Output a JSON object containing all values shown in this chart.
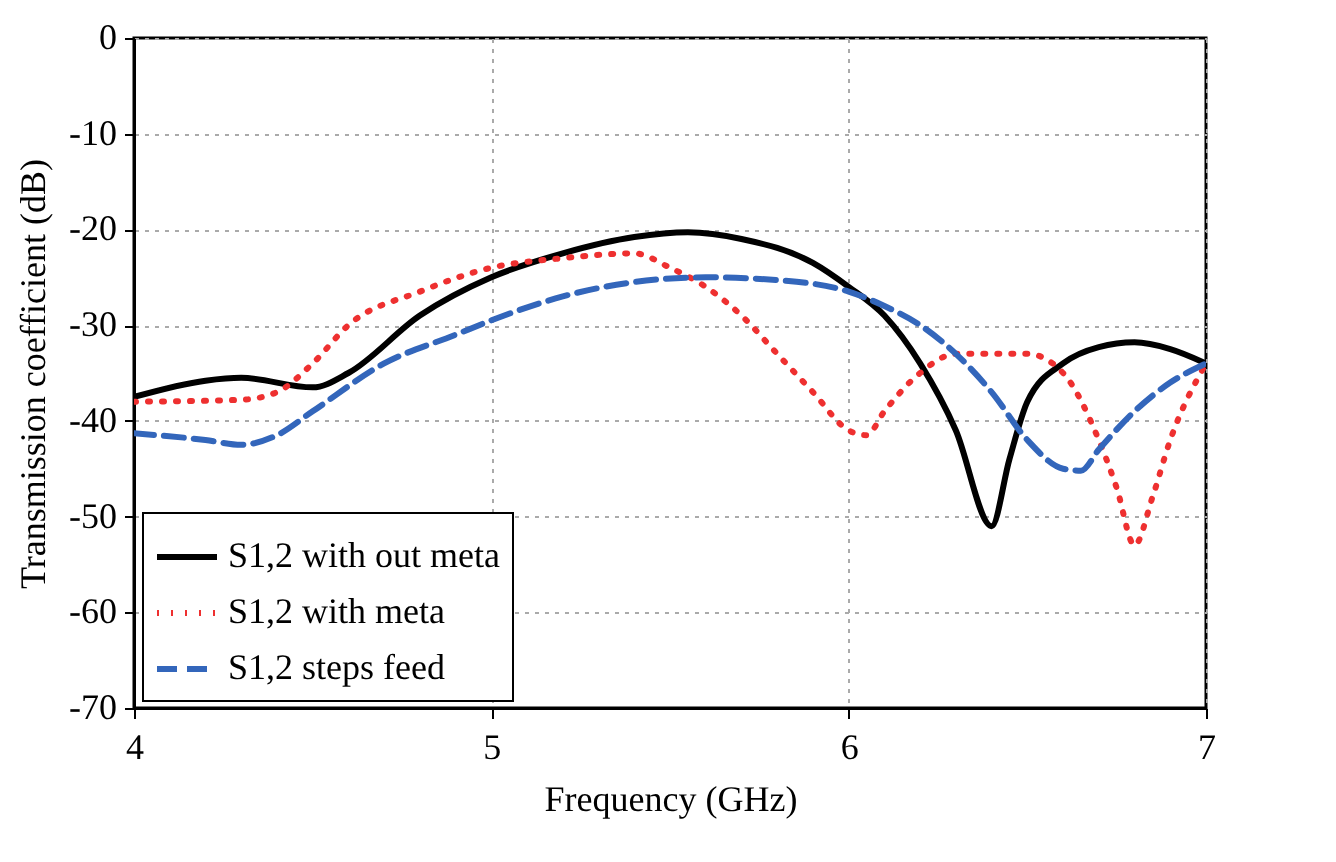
{
  "chart_data": {
    "type": "line",
    "xlabel": "Frequency (GHz)",
    "ylabel": "Transmission coefficient (dB)",
    "xlim": [
      4,
      7
    ],
    "xticks": [
      4,
      5,
      6,
      7
    ],
    "ylim": [
      -70,
      0
    ],
    "yticks": [
      -70,
      -60,
      -50,
      -40,
      -30,
      -20,
      -10,
      0
    ],
    "grid": true,
    "legend": "bottom left",
    "series": [
      {
        "name": "S1,2 with out meta",
        "color": "#000000",
        "line_style": "solid",
        "x": [
          4.0,
          4.2,
          4.3,
          4.5,
          4.6,
          4.8,
          5.0,
          5.2,
          5.4,
          5.55,
          5.7,
          5.9,
          6.0,
          6.1,
          6.2,
          6.3,
          6.4,
          6.45,
          6.5,
          6.6,
          6.7,
          6.8,
          6.9,
          7.0
        ],
        "values": [
          -37.5,
          -35.8,
          -35.5,
          -36.5,
          -35,
          -29,
          -25,
          -22.5,
          -20.8,
          -20.3,
          -21,
          -23.5,
          -26,
          -29,
          -34,
          -41,
          -51,
          -44,
          -38,
          -34,
          -32.3,
          -31.8,
          -32.5,
          -34
        ]
      },
      {
        "name": "S1,2 with meta",
        "color": "#ee3030",
        "line_style": "dotted",
        "x": [
          4.0,
          4.3,
          4.4,
          4.5,
          4.6,
          4.8,
          5.0,
          5.2,
          5.4,
          5.5,
          5.6,
          5.7,
          5.8,
          5.9,
          6.0,
          6.05,
          6.1,
          6.2,
          6.3,
          6.5,
          6.6,
          6.7,
          6.75,
          6.8,
          6.85,
          6.9,
          7.0
        ],
        "values": [
          -38,
          -37.8,
          -37,
          -34,
          -30,
          -26.5,
          -24,
          -23,
          -22.5,
          -24,
          -26,
          -29,
          -33,
          -37,
          -41,
          -41.5,
          -39,
          -35,
          -33,
          -33,
          -35,
          -42,
          -47,
          -53,
          -48,
          -42,
          -34
        ]
      },
      {
        "name": "S1,2 steps feed",
        "color": "#3366bb",
        "line_style": "dashed",
        "x": [
          4.0,
          4.2,
          4.3,
          4.4,
          4.5,
          4.7,
          4.9,
          5.0,
          5.2,
          5.4,
          5.6,
          5.8,
          6.0,
          6.1,
          6.2,
          6.3,
          6.4,
          6.5,
          6.6,
          6.65,
          6.7,
          6.8,
          6.9,
          7.0
        ],
        "values": [
          -41.3,
          -42,
          -42.5,
          -41.5,
          -39,
          -34,
          -31,
          -29.5,
          -27,
          -25.5,
          -25,
          -25.3,
          -26.5,
          -28,
          -30,
          -33,
          -37,
          -42,
          -45,
          -45.2,
          -43,
          -39,
          -36,
          -34
        ]
      }
    ]
  }
}
